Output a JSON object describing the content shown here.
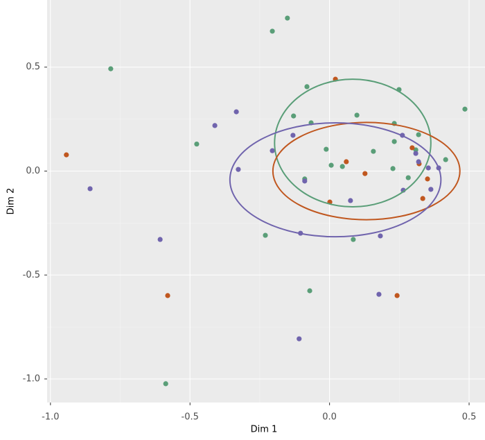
{
  "chart_data": {
    "type": "scatter",
    "x_label": "Dim 1",
    "y_label": "Dim 2",
    "xlim": [
      -1.012,
      0.557
    ],
    "ylim": [
      -1.1135,
      0.823
    ],
    "xticks": [
      {
        "value": -1.0,
        "label": "-1.0"
      },
      -0.5,
      {
        "value": 0.0,
        "label": "0.0"
      },
      0.5
    ],
    "yticks": [
      0.5,
      {
        "value": 0.0,
        "label": "0.0"
      },
      -0.5,
      {
        "value": -1.0,
        "label": "-1.0"
      }
    ],
    "grid": true,
    "series": [
      {
        "color": "#5a9e78",
        "x": [
          -0.151,
          -0.205,
          -0.784,
          0.249,
          -0.081,
          0.485,
          -0.129,
          0.098,
          -0.066,
          0.232,
          -0.476,
          0.319,
          0.232,
          -0.012,
          0.157,
          0.309,
          0.416,
          0.006,
          0.046,
          0.227,
          0.282,
          -0.089,
          -0.23,
          0.085,
          -0.071,
          -0.587
        ],
        "values": [
          0.736,
          0.673,
          0.492,
          0.392,
          0.406,
          0.298,
          0.265,
          0.269,
          0.232,
          0.229,
          0.13,
          0.175,
          0.142,
          0.105,
          0.095,
          0.102,
          0.055,
          0.028,
          0.022,
          0.012,
          -0.032,
          -0.038,
          -0.309,
          -0.329,
          -0.576,
          -1.023
        ],
        "ellipse": {
          "cx": 0.083,
          "cy": 0.135,
          "rx": 0.28,
          "ry": 0.307
        }
      },
      {
        "color": "#c0571f",
        "x": [
          0.021,
          -0.943,
          0.06,
          0.296,
          0.321,
          0.127,
          0.351,
          0.334,
          0.001,
          -0.58,
          0.242
        ],
        "values": [
          0.442,
          0.078,
          0.045,
          0.112,
          0.035,
          -0.012,
          -0.038,
          -0.132,
          -0.149,
          -0.599,
          -0.599
        ],
        "ellipse": {
          "cx": 0.132,
          "cy": 0.0,
          "rx": 0.335,
          "ry": 0.234
        }
      },
      {
        "color": "#7064ad",
        "x": [
          -0.334,
          -0.411,
          -0.131,
          -0.205,
          0.261,
          0.309,
          0.319,
          0.354,
          0.391,
          -0.327,
          -0.089,
          0.075,
          0.264,
          0.363,
          -0.858,
          -0.607,
          -0.104,
          0.182,
          0.177,
          -0.109
        ],
        "values": [
          0.285,
          0.219,
          0.172,
          0.098,
          0.172,
          0.085,
          0.045,
          0.015,
          0.015,
          0.008,
          -0.048,
          -0.142,
          -0.092,
          -0.088,
          -0.085,
          -0.329,
          -0.299,
          -0.312,
          -0.593,
          -0.807
        ],
        "ellipse": {
          "cx": 0.021,
          "cy": -0.042,
          "rx": 0.378,
          "ry": 0.274
        }
      }
    ]
  }
}
